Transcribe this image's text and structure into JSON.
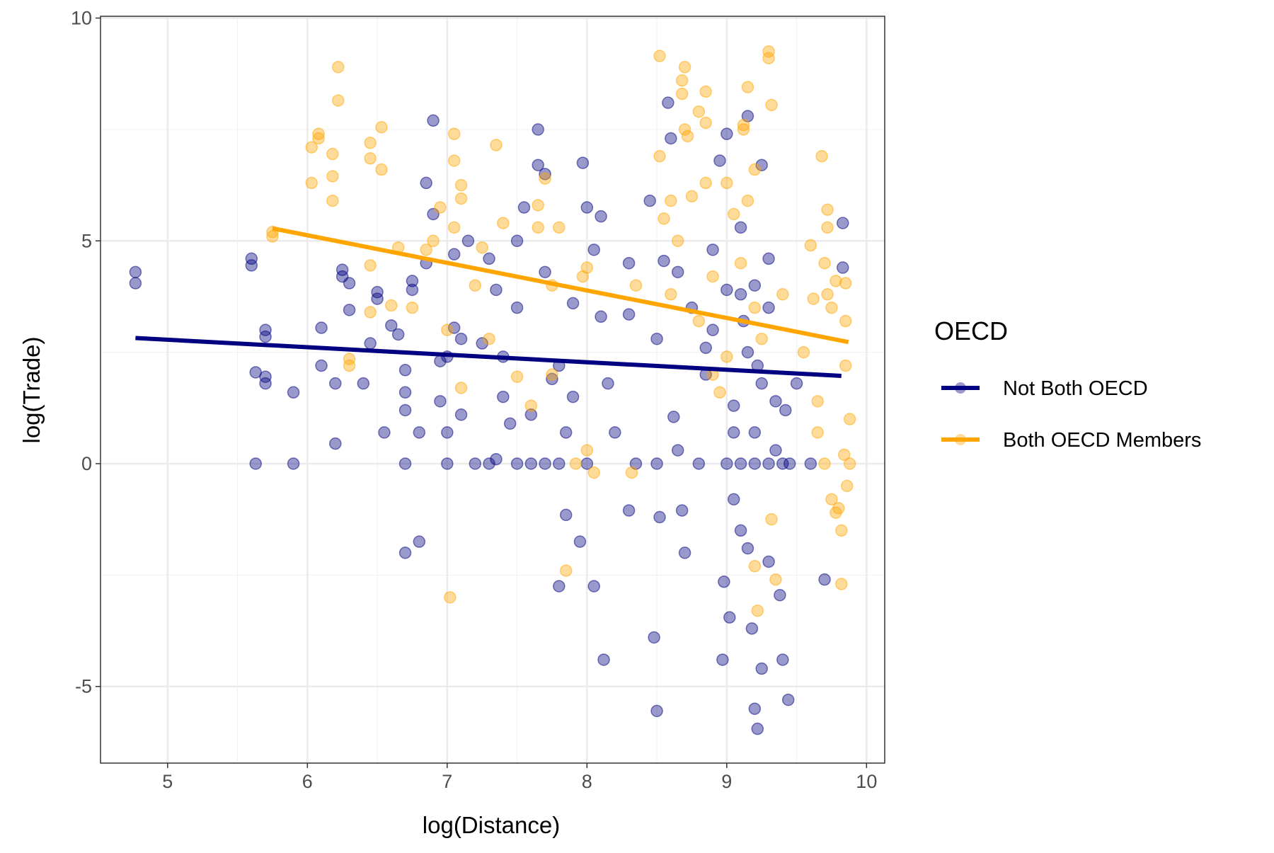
{
  "chart_data": {
    "type": "scatter",
    "title": "",
    "xlabel": "log(Distance)",
    "ylabel": "log(Trade)",
    "xlim": [
      4.52,
      10.13
    ],
    "ylim": [
      -6.72,
      10.04
    ],
    "x_ticks": [
      5,
      6,
      7,
      8,
      9,
      10
    ],
    "x_tick_labels": [
      "5",
      "6",
      "7",
      "8",
      "9",
      "10"
    ],
    "y_ticks": [
      -5,
      0,
      5,
      10
    ],
    "y_tick_labels": [
      "-5",
      "0",
      "5",
      "10"
    ],
    "grid": true,
    "legend": {
      "title": "OECD",
      "placement": "right"
    },
    "series": [
      {
        "name": "Not Both OECD",
        "color": "#000080",
        "point_opacity": 0.4,
        "fit_line": [
          [
            4.77,
            2.82
          ],
          [
            9.82,
            1.97
          ]
        ],
        "points": [
          [
            4.77,
            4.3
          ],
          [
            4.77,
            4.05
          ],
          [
            5.6,
            4.6
          ],
          [
            5.6,
            4.45
          ],
          [
            5.63,
            2.05
          ],
          [
            5.63,
            0
          ],
          [
            5.7,
            3.0
          ],
          [
            5.7,
            2.85
          ],
          [
            5.7,
            1.95
          ],
          [
            5.7,
            1.8
          ],
          [
            5.9,
            1.6
          ],
          [
            5.9,
            0
          ],
          [
            6.1,
            3.05
          ],
          [
            6.1,
            2.2
          ],
          [
            6.2,
            1.8
          ],
          [
            6.2,
            0.45
          ],
          [
            6.25,
            4.35
          ],
          [
            6.25,
            4.2
          ],
          [
            6.3,
            3.45
          ],
          [
            6.3,
            4.05
          ],
          [
            6.4,
            1.8
          ],
          [
            6.45,
            2.7
          ],
          [
            6.5,
            3.85
          ],
          [
            6.5,
            3.7
          ],
          [
            6.55,
            0.7
          ],
          [
            6.6,
            3.1
          ],
          [
            6.65,
            2.9
          ],
          [
            6.7,
            2.1
          ],
          [
            6.7,
            1.6
          ],
          [
            6.7,
            1.2
          ],
          [
            6.7,
            0
          ],
          [
            6.7,
            -2.0
          ],
          [
            6.75,
            3.9
          ],
          [
            6.75,
            4.1
          ],
          [
            6.8,
            -1.75
          ],
          [
            6.8,
            0.7
          ],
          [
            6.85,
            4.5
          ],
          [
            6.85,
            6.3
          ],
          [
            6.9,
            7.7
          ],
          [
            6.9,
            5.6
          ],
          [
            6.95,
            2.3
          ],
          [
            6.95,
            1.4
          ],
          [
            7.0,
            0.7
          ],
          [
            7.0,
            0
          ],
          [
            7.0,
            2.4
          ],
          [
            7.05,
            3.05
          ],
          [
            7.05,
            4.7
          ],
          [
            7.1,
            1.1
          ],
          [
            7.1,
            2.8
          ],
          [
            7.15,
            5.0
          ],
          [
            7.2,
            0
          ],
          [
            7.25,
            2.7
          ],
          [
            7.3,
            4.6
          ],
          [
            7.35,
            3.9
          ],
          [
            7.35,
            0.1
          ],
          [
            7.4,
            1.5
          ],
          [
            7.4,
            2.4
          ],
          [
            7.45,
            0.9
          ],
          [
            7.5,
            3.5
          ],
          [
            7.5,
            5.0
          ],
          [
            7.55,
            5.75
          ],
          [
            7.6,
            1.1
          ],
          [
            7.6,
            0
          ],
          [
            7.65,
            7.5
          ],
          [
            7.65,
            6.7
          ],
          [
            7.7,
            6.5
          ],
          [
            7.7,
            4.3
          ],
          [
            7.75,
            1.9
          ],
          [
            7.8,
            2.2
          ],
          [
            7.8,
            -2.75
          ],
          [
            7.8,
            0
          ],
          [
            7.85,
            0.7
          ],
          [
            7.85,
            -1.15
          ],
          [
            7.9,
            3.6
          ],
          [
            7.9,
            1.5
          ],
          [
            7.95,
            -1.75
          ],
          [
            7.97,
            6.75
          ],
          [
            8.0,
            5.75
          ],
          [
            8.0,
            0
          ],
          [
            8.05,
            4.8
          ],
          [
            8.05,
            -2.75
          ],
          [
            8.1,
            3.3
          ],
          [
            8.1,
            5.55
          ],
          [
            8.12,
            -4.4
          ],
          [
            8.15,
            1.8
          ],
          [
            8.2,
            0.7
          ],
          [
            8.3,
            4.5
          ],
          [
            8.3,
            3.35
          ],
          [
            8.3,
            -1.05
          ],
          [
            8.35,
            0
          ],
          [
            8.45,
            5.9
          ],
          [
            8.48,
            -3.9
          ],
          [
            8.5,
            -5.55
          ],
          [
            8.5,
            2.8
          ],
          [
            8.52,
            -1.2
          ],
          [
            8.55,
            4.55
          ],
          [
            8.58,
            8.1
          ],
          [
            8.6,
            7.3
          ],
          [
            8.62,
            1.05
          ],
          [
            8.65,
            0.3
          ],
          [
            8.65,
            4.3
          ],
          [
            8.68,
            -1.05
          ],
          [
            8.7,
            -2.0
          ],
          [
            8.75,
            3.5
          ],
          [
            8.8,
            0
          ],
          [
            8.85,
            2.0
          ],
          [
            8.9,
            4.8
          ],
          [
            8.9,
            3.0
          ],
          [
            8.95,
            6.8
          ],
          [
            8.97,
            -4.4
          ],
          [
            8.98,
            -2.65
          ],
          [
            9.0,
            7.4
          ],
          [
            9.02,
            -3.45
          ],
          [
            9.05,
            1.3
          ],
          [
            9.05,
            -0.8
          ],
          [
            9.1,
            -1.5
          ],
          [
            9.1,
            5.3
          ],
          [
            9.12,
            3.2
          ],
          [
            9.15,
            -1.9
          ],
          [
            9.15,
            7.8
          ],
          [
            9.18,
            -3.7
          ],
          [
            9.2,
            -5.5
          ],
          [
            9.22,
            -5.95
          ],
          [
            9.22,
            2.2
          ],
          [
            9.25,
            -4.6
          ],
          [
            9.25,
            6.7
          ],
          [
            9.3,
            -2.2
          ],
          [
            9.3,
            3.5
          ],
          [
            9.35,
            0.3
          ],
          [
            9.38,
            -2.95
          ],
          [
            9.4,
            -4.4
          ],
          [
            9.42,
            1.2
          ],
          [
            9.44,
            -5.3
          ],
          [
            9.45,
            0
          ],
          [
            9.5,
            1.8
          ],
          [
            9.6,
            0
          ],
          [
            9.7,
            -2.6
          ],
          [
            9.83,
            5.4
          ],
          [
            9.83,
            4.4
          ],
          [
            9.0,
            0
          ],
          [
            9.1,
            0
          ],
          [
            9.2,
            0
          ],
          [
            9.3,
            0
          ],
          [
            9.4,
            0
          ],
          [
            8.5,
            0
          ],
          [
            7.3,
            0
          ],
          [
            7.5,
            0
          ],
          [
            7.7,
            0
          ],
          [
            9.2,
            4.0
          ],
          [
            9.1,
            3.8
          ],
          [
            9.3,
            4.6
          ],
          [
            9.0,
            3.9
          ],
          [
            8.85,
            2.6
          ],
          [
            9.15,
            2.5
          ],
          [
            9.25,
            1.8
          ],
          [
            9.05,
            0.7
          ],
          [
            9.2,
            0.7
          ],
          [
            9.35,
            1.4
          ]
        ]
      },
      {
        "name": "Both OECD Members",
        "color": "#FFA500",
        "point_opacity": 0.4,
        "fit_line": [
          [
            5.75,
            5.28
          ],
          [
            9.87,
            2.73
          ]
        ],
        "points": [
          [
            5.75,
            5.1
          ],
          [
            5.75,
            5.2
          ],
          [
            6.03,
            7.1
          ],
          [
            6.03,
            6.3
          ],
          [
            6.08,
            7.4
          ],
          [
            6.08,
            7.3
          ],
          [
            6.18,
            6.95
          ],
          [
            6.18,
            6.45
          ],
          [
            6.18,
            5.9
          ],
          [
            6.22,
            8.9
          ],
          [
            6.22,
            8.15
          ],
          [
            6.3,
            2.35
          ],
          [
            6.3,
            2.2
          ],
          [
            6.45,
            7.2
          ],
          [
            6.45,
            6.85
          ],
          [
            6.45,
            4.45
          ],
          [
            6.45,
            3.4
          ],
          [
            6.53,
            7.55
          ],
          [
            6.53,
            6.6
          ],
          [
            6.6,
            3.55
          ],
          [
            6.65,
            4.85
          ],
          [
            6.75,
            3.5
          ],
          [
            6.85,
            4.8
          ],
          [
            6.9,
            5.0
          ],
          [
            6.95,
            5.75
          ],
          [
            7.0,
            3.0
          ],
          [
            7.02,
            -3.0
          ],
          [
            7.05,
            7.4
          ],
          [
            7.05,
            6.8
          ],
          [
            7.05,
            5.3
          ],
          [
            7.1,
            6.25
          ],
          [
            7.1,
            5.95
          ],
          [
            7.1,
            1.7
          ],
          [
            7.2,
            4.0
          ],
          [
            7.25,
            4.85
          ],
          [
            7.3,
            2.8
          ],
          [
            7.35,
            7.15
          ],
          [
            7.4,
            5.4
          ],
          [
            7.5,
            1.95
          ],
          [
            7.6,
            1.3
          ],
          [
            7.65,
            5.8
          ],
          [
            7.65,
            5.3
          ],
          [
            7.7,
            6.4
          ],
          [
            7.75,
            4.0
          ],
          [
            7.75,
            2.0
          ],
          [
            7.8,
            5.3
          ],
          [
            7.85,
            -2.4
          ],
          [
            7.92,
            0
          ],
          [
            7.97,
            4.2
          ],
          [
            8.0,
            4.4
          ],
          [
            8.0,
            0.3
          ],
          [
            8.05,
            -0.2
          ],
          [
            8.32,
            -0.2
          ],
          [
            8.35,
            4.0
          ],
          [
            8.52,
            9.15
          ],
          [
            8.52,
            6.9
          ],
          [
            8.55,
            5.5
          ],
          [
            8.6,
            5.9
          ],
          [
            8.6,
            3.8
          ],
          [
            8.65,
            5.0
          ],
          [
            8.68,
            8.6
          ],
          [
            8.68,
            8.3
          ],
          [
            8.7,
            8.9
          ],
          [
            8.7,
            7.5
          ],
          [
            8.72,
            7.35
          ],
          [
            8.75,
            6.0
          ],
          [
            8.8,
            7.9
          ],
          [
            8.85,
            8.35
          ],
          [
            8.85,
            7.65
          ],
          [
            8.85,
            6.3
          ],
          [
            8.9,
            4.2
          ],
          [
            8.9,
            2.0
          ],
          [
            9.0,
            6.3
          ],
          [
            9.05,
            5.6
          ],
          [
            9.12,
            7.5
          ],
          [
            9.12,
            7.6
          ],
          [
            9.15,
            8.45
          ],
          [
            9.2,
            6.6
          ],
          [
            9.2,
            -2.3
          ],
          [
            9.22,
            -3.3
          ],
          [
            9.3,
            9.25
          ],
          [
            9.3,
            9.1
          ],
          [
            9.32,
            8.05
          ],
          [
            9.32,
            -1.25
          ],
          [
            9.35,
            -2.6
          ],
          [
            9.4,
            3.8
          ],
          [
            9.55,
            2.5
          ],
          [
            9.6,
            4.9
          ],
          [
            9.62,
            3.7
          ],
          [
            9.65,
            1.4
          ],
          [
            9.65,
            0.7
          ],
          [
            9.68,
            6.9
          ],
          [
            9.7,
            4.5
          ],
          [
            9.72,
            5.7
          ],
          [
            9.72,
            5.3
          ],
          [
            9.72,
            3.8
          ],
          [
            9.75,
            3.5
          ],
          [
            9.75,
            -0.8
          ],
          [
            9.78,
            4.1
          ],
          [
            9.8,
            -1.0
          ],
          [
            9.82,
            -1.5
          ],
          [
            9.82,
            -2.7
          ],
          [
            9.84,
            0.2
          ],
          [
            9.85,
            4.05
          ],
          [
            9.85,
            3.2
          ],
          [
            9.85,
            2.2
          ],
          [
            9.86,
            -0.5
          ],
          [
            9.88,
            1.0
          ],
          [
            9.88,
            0
          ],
          [
            9.1,
            4.5
          ],
          [
            9.2,
            3.5
          ],
          [
            9.25,
            2.8
          ],
          [
            9.0,
            2.4
          ],
          [
            8.95,
            1.6
          ],
          [
            9.15,
            5.9
          ],
          [
            8.8,
            3.2
          ],
          [
            9.7,
            0
          ],
          [
            9.78,
            -1.1
          ]
        ]
      }
    ]
  }
}
